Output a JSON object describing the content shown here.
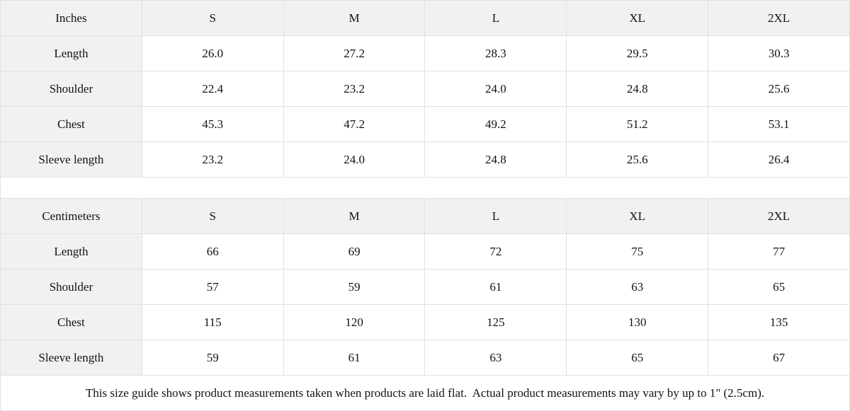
{
  "colors": {
    "header_bg": "#f1f1f1",
    "cell_bg": "#ffffff",
    "border": "#e1e1e1",
    "text": "#121212"
  },
  "tables": [
    {
      "unit_label": "Inches",
      "sizes": [
        "S",
        "M",
        "L",
        "XL",
        "2XL"
      ],
      "rows": [
        {
          "label": "Length",
          "values": [
            "26.0",
            "27.2",
            "28.3",
            "29.5",
            "30.3"
          ]
        },
        {
          "label": "Shoulder",
          "values": [
            "22.4",
            "23.2",
            "24.0",
            "24.8",
            "25.6"
          ]
        },
        {
          "label": "Chest",
          "values": [
            "45.3",
            "47.2",
            "49.2",
            "51.2",
            "53.1"
          ]
        },
        {
          "label": "Sleeve length",
          "values": [
            "23.2",
            "24.0",
            "24.8",
            "25.6",
            "26.4"
          ]
        }
      ]
    },
    {
      "unit_label": "Centimeters",
      "sizes": [
        "S",
        "M",
        "L",
        "XL",
        "2XL"
      ],
      "rows": [
        {
          "label": "Length",
          "values": [
            "66",
            "69",
            "72",
            "75",
            "77"
          ]
        },
        {
          "label": "Shoulder",
          "values": [
            "57",
            "59",
            "61",
            "63",
            "65"
          ]
        },
        {
          "label": "Chest",
          "values": [
            "115",
            "120",
            "125",
            "130",
            "135"
          ]
        },
        {
          "label": "Sleeve length",
          "values": [
            "59",
            "61",
            "63",
            "65",
            "67"
          ]
        }
      ]
    }
  ],
  "page": {
    "footnote": "This size guide shows product measurements taken when products are laid flat.  Actual product measurements may vary by up to 1\" (2.5cm)."
  }
}
